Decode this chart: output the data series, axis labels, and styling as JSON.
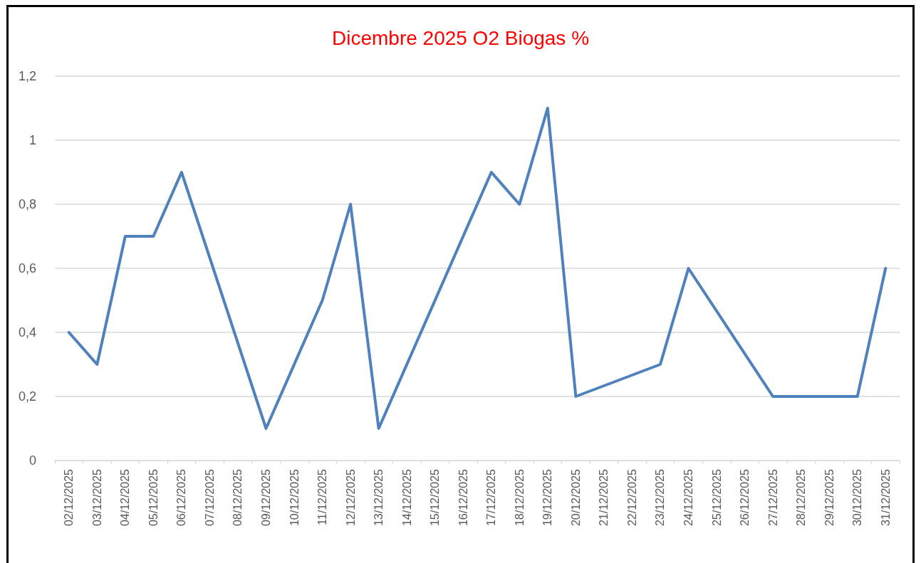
{
  "chart_data": {
    "type": "line",
    "title": "Dicembre 2025 O2 Biogas %",
    "categories": [
      "02/12/2025",
      "03/12/2025",
      "04/12/2025",
      "05/12/2025",
      "06/12/2025",
      "07/12/2025",
      "08/12/2025",
      "09/12/2025",
      "10/12/2025",
      "11/12/2025",
      "12/12/2025",
      "13/12/2025",
      "14/12/2025",
      "15/12/2025",
      "16/12/2025",
      "17/12/2025",
      "18/12/2025",
      "19/12/2025",
      "20/12/2025",
      "21/12/2025",
      "22/12/2025",
      "23/12/2025",
      "24/12/2025",
      "25/12/2025",
      "26/12/2025",
      "27/12/2025",
      "28/12/2025",
      "29/12/2025",
      "30/12/2025",
      "31/12/2025"
    ],
    "series": [
      {
        "color": "#4f81bd",
        "values": [
          0.4,
          0.3,
          0.7,
          0.7,
          0.9,
          null,
          null,
          0.1,
          null,
          0.5,
          0.8,
          0.1,
          null,
          null,
          null,
          0.9,
          0.8,
          1.1,
          0.2,
          null,
          null,
          0.3,
          0.6,
          null,
          null,
          0.2,
          null,
          null,
          0.2,
          0.6
        ]
      }
    ],
    "ylim": [
      0,
      1.2
    ],
    "yticks": [
      0,
      {
        "value": 0.2,
        "label": "0,2"
      },
      {
        "value": 0.4,
        "label": "0,4"
      },
      {
        "value": 0.6,
        "label": "0,6"
      },
      {
        "value": 0.8,
        "label": "0,8"
      },
      1,
      {
        "value": 1.2,
        "label": "1,2"
      }
    ],
    "grid": "y",
    "marker": "none",
    "line_style": "solid"
  }
}
